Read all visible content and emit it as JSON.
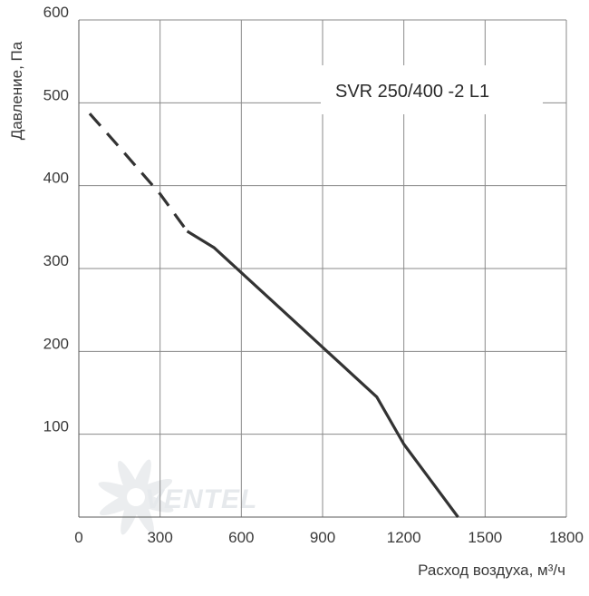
{
  "chart_data": {
    "type": "line",
    "xlabel": "Расход воздуха, м³/ч",
    "ylabel": "Давление, Па",
    "xlim": [
      0,
      1800
    ],
    "ylim": [
      0,
      600
    ],
    "x_ticks": [
      "0",
      "300",
      "600",
      "900",
      "1200",
      "1500",
      "1800"
    ],
    "y_ticks": [
      "100",
      "200",
      "300",
      "400",
      "500",
      "600"
    ],
    "grid": true,
    "annotation": "SVR 250/400 -2 L1",
    "watermark": "VENTEL",
    "series": [
      {
        "color": "#333333",
        "dashed": {
          "x": [
            40,
            140,
            300,
            400
          ],
          "y": [
            487,
            450,
            390,
            345
          ]
        },
        "solid": {
          "x": [
            400,
            500,
            600,
            700,
            800,
            900,
            1000,
            1100,
            1200,
            1300,
            1400
          ],
          "y": [
            345,
            325,
            295,
            265,
            235,
            205,
            175,
            145,
            88,
            44,
            0
          ]
        }
      }
    ]
  }
}
